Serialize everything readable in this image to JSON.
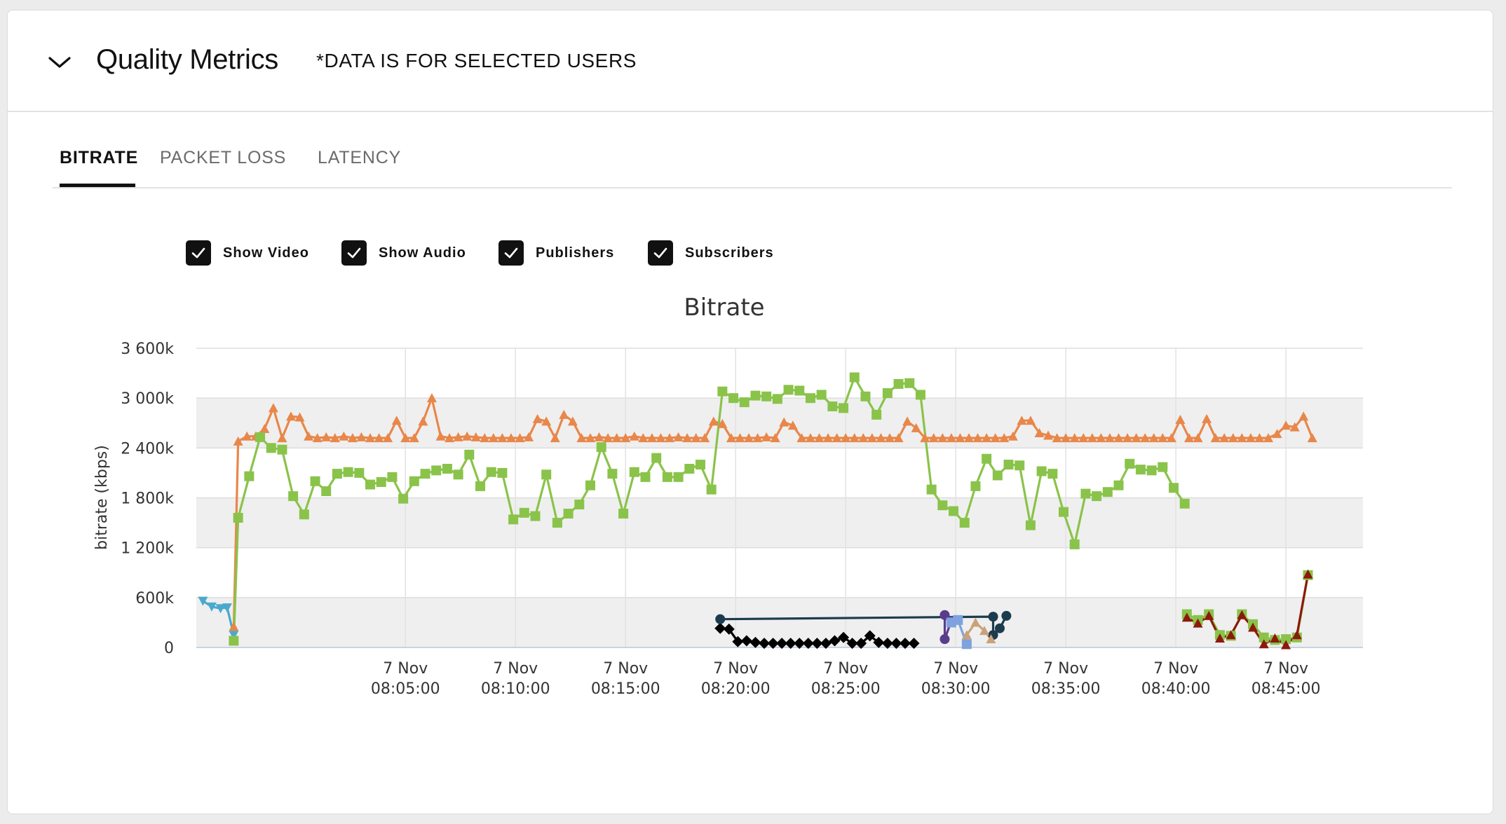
{
  "header": {
    "title": "Quality Metrics",
    "note": "*DATA IS FOR SELECTED USERS"
  },
  "tabs": [
    {
      "label": "BITRATE",
      "active": true
    },
    {
      "label": "PACKET LOSS",
      "active": false
    },
    {
      "label": "LATENCY",
      "active": false
    }
  ],
  "filters": [
    {
      "label": "Show Video",
      "checked": true
    },
    {
      "label": "Show Audio",
      "checked": true
    },
    {
      "label": "Publishers",
      "checked": true
    },
    {
      "label": "Subscribers",
      "checked": true
    }
  ],
  "chart_data": {
    "type": "line",
    "title": "Bitrate",
    "xlabel": "",
    "ylabel": "bitrate (kbps)",
    "ylim": [
      0,
      3600
    ],
    "xlim_minutes": [
      -4.5,
      48.5
    ],
    "x_unit": "minutes after 08:00:00",
    "y_ticks": [
      {
        "value": 0,
        "label": "0"
      },
      {
        "value": 600,
        "label": "600k"
      },
      {
        "value": 1200,
        "label": "1 200k"
      },
      {
        "value": 1800,
        "label": "1 800k"
      },
      {
        "value": 2400,
        "label": "2 400k"
      },
      {
        "value": 3000,
        "label": "3 000k"
      },
      {
        "value": 3600,
        "label": "3 600k"
      }
    ],
    "x_ticks": [
      {
        "value": 5,
        "label_top": "7 Nov",
        "label_bottom": "08:05:00"
      },
      {
        "value": 10,
        "label_top": "7 Nov",
        "label_bottom": "08:10:00"
      },
      {
        "value": 15,
        "label_top": "7 Nov",
        "label_bottom": "08:15:00"
      },
      {
        "value": 20,
        "label_top": "7 Nov",
        "label_bottom": "08:20:00"
      },
      {
        "value": 25,
        "label_top": "7 Nov",
        "label_bottom": "08:25:00"
      },
      {
        "value": 30,
        "label_top": "7 Nov",
        "label_bottom": "08:30:00"
      },
      {
        "value": 35,
        "label_top": "7 Nov",
        "label_bottom": "08:35:00"
      },
      {
        "value": 40,
        "label_top": "7 Nov",
        "label_bottom": "08:40:00"
      },
      {
        "value": 45,
        "label_top": "7 Nov",
        "label_bottom": "08:45:00"
      }
    ],
    "grid": true,
    "legend": "none",
    "series": [
      {
        "color": "#4aa9cc",
        "marker": "triangle-down",
        "points": [
          [
            -4.2,
            560
          ],
          [
            -3.8,
            490
          ],
          [
            -3.4,
            470
          ],
          [
            -3.1,
            480
          ],
          [
            -2.8,
            150
          ]
        ]
      },
      {
        "color": "#e8874a",
        "marker": "triangle-up",
        "points": [
          [
            -2.8,
            250
          ],
          [
            -2.6,
            2480
          ],
          [
            -2.2,
            2540
          ],
          [
            -1.8,
            2540
          ],
          [
            -1.4,
            2630
          ],
          [
            -1.0,
            2880
          ],
          [
            -0.6,
            2520
          ],
          [
            -0.2,
            2780
          ],
          [
            0.2,
            2770
          ],
          [
            0.6,
            2540
          ],
          [
            1.0,
            2520
          ],
          [
            1.4,
            2530
          ],
          [
            1.8,
            2520
          ],
          [
            2.2,
            2540
          ],
          [
            2.6,
            2520
          ],
          [
            3.0,
            2530
          ],
          [
            3.4,
            2520
          ],
          [
            3.8,
            2520
          ],
          [
            4.2,
            2520
          ],
          [
            4.6,
            2730
          ],
          [
            5.0,
            2520
          ],
          [
            5.4,
            2520
          ],
          [
            5.8,
            2720
          ],
          [
            6.2,
            3000
          ],
          [
            6.6,
            2540
          ],
          [
            7.0,
            2520
          ],
          [
            7.4,
            2530
          ],
          [
            7.8,
            2540
          ],
          [
            8.2,
            2530
          ],
          [
            8.6,
            2520
          ],
          [
            9.0,
            2520
          ],
          [
            9.4,
            2520
          ],
          [
            9.8,
            2520
          ],
          [
            10.2,
            2520
          ],
          [
            10.6,
            2530
          ],
          [
            11.0,
            2750
          ],
          [
            11.4,
            2720
          ],
          [
            11.8,
            2520
          ],
          [
            12.2,
            2800
          ],
          [
            12.6,
            2720
          ],
          [
            13.0,
            2520
          ],
          [
            13.4,
            2520
          ],
          [
            13.8,
            2530
          ],
          [
            14.2,
            2520
          ],
          [
            14.6,
            2520
          ],
          [
            15.0,
            2520
          ],
          [
            15.4,
            2540
          ],
          [
            15.8,
            2520
          ],
          [
            16.2,
            2520
          ],
          [
            16.6,
            2520
          ],
          [
            17.0,
            2520
          ],
          [
            17.4,
            2530
          ],
          [
            17.8,
            2520
          ],
          [
            18.2,
            2520
          ],
          [
            18.6,
            2520
          ],
          [
            19.0,
            2720
          ],
          [
            19.4,
            2690
          ],
          [
            19.8,
            2520
          ],
          [
            20.2,
            2520
          ],
          [
            20.6,
            2520
          ],
          [
            21.0,
            2520
          ],
          [
            21.4,
            2530
          ],
          [
            21.8,
            2520
          ],
          [
            22.2,
            2710
          ],
          [
            22.6,
            2670
          ],
          [
            23.0,
            2520
          ],
          [
            23.4,
            2520
          ],
          [
            23.8,
            2520
          ],
          [
            24.2,
            2520
          ],
          [
            24.6,
            2520
          ],
          [
            25.0,
            2520
          ],
          [
            25.4,
            2520
          ],
          [
            25.8,
            2520
          ],
          [
            26.2,
            2520
          ],
          [
            26.6,
            2520
          ],
          [
            27.0,
            2520
          ],
          [
            27.4,
            2520
          ],
          [
            27.8,
            2720
          ],
          [
            28.2,
            2640
          ],
          [
            28.6,
            2520
          ],
          [
            29.0,
            2520
          ],
          [
            29.4,
            2520
          ],
          [
            29.8,
            2520
          ],
          [
            30.2,
            2520
          ],
          [
            30.6,
            2520
          ],
          [
            31.0,
            2520
          ],
          [
            31.4,
            2520
          ],
          [
            31.8,
            2520
          ],
          [
            32.2,
            2520
          ],
          [
            32.6,
            2540
          ],
          [
            33.0,
            2730
          ],
          [
            33.4,
            2730
          ],
          [
            33.8,
            2580
          ],
          [
            34.2,
            2550
          ],
          [
            34.6,
            2520
          ],
          [
            35.0,
            2520
          ],
          [
            35.4,
            2520
          ],
          [
            35.8,
            2520
          ],
          [
            36.2,
            2520
          ],
          [
            36.6,
            2520
          ],
          [
            37.0,
            2520
          ],
          [
            37.4,
            2520
          ],
          [
            37.8,
            2520
          ],
          [
            38.2,
            2520
          ],
          [
            38.6,
            2520
          ],
          [
            39.0,
            2520
          ],
          [
            39.4,
            2520
          ],
          [
            39.8,
            2520
          ],
          [
            40.2,
            2740
          ],
          [
            40.6,
            2520
          ],
          [
            41.0,
            2520
          ],
          [
            41.4,
            2750
          ],
          [
            41.8,
            2520
          ],
          [
            42.2,
            2520
          ],
          [
            42.6,
            2520
          ],
          [
            43.0,
            2520
          ],
          [
            43.4,
            2520
          ],
          [
            43.8,
            2520
          ],
          [
            44.2,
            2520
          ],
          [
            44.6,
            2570
          ],
          [
            45.0,
            2670
          ],
          [
            45.4,
            2650
          ],
          [
            45.8,
            2780
          ],
          [
            46.2,
            2520
          ]
        ]
      },
      {
        "color": "#8ac34a",
        "marker": "square",
        "points": [
          [
            -2.8,
            80
          ],
          [
            -2.6,
            1560
          ],
          [
            -2.1,
            2060
          ],
          [
            -1.6,
            2530
          ],
          [
            -1.1,
            2400
          ],
          [
            -0.6,
            2380
          ],
          [
            -0.1,
            1820
          ],
          [
            0.4,
            1600
          ],
          [
            0.9,
            2000
          ],
          [
            1.4,
            1880
          ],
          [
            1.9,
            2090
          ],
          [
            2.4,
            2110
          ],
          [
            2.9,
            2100
          ],
          [
            3.4,
            1960
          ],
          [
            3.9,
            1990
          ],
          [
            4.4,
            2050
          ],
          [
            4.9,
            1790
          ],
          [
            5.4,
            2000
          ],
          [
            5.9,
            2090
          ],
          [
            6.4,
            2130
          ],
          [
            6.9,
            2150
          ],
          [
            7.4,
            2080
          ],
          [
            7.9,
            2320
          ],
          [
            8.4,
            1940
          ],
          [
            8.9,
            2110
          ],
          [
            9.4,
            2100
          ],
          [
            9.9,
            1540
          ],
          [
            10.4,
            1620
          ],
          [
            10.9,
            1580
          ],
          [
            11.4,
            2080
          ],
          [
            11.9,
            1500
          ],
          [
            12.4,
            1610
          ],
          [
            12.9,
            1720
          ],
          [
            13.4,
            1950
          ],
          [
            13.9,
            2410
          ],
          [
            14.4,
            2090
          ],
          [
            14.9,
            1610
          ],
          [
            15.4,
            2110
          ],
          [
            15.9,
            2050
          ],
          [
            16.4,
            2280
          ],
          [
            16.9,
            2050
          ],
          [
            17.4,
            2050
          ],
          [
            17.9,
            2150
          ],
          [
            18.4,
            2200
          ],
          [
            18.9,
            1900
          ],
          [
            19.4,
            3080
          ],
          [
            19.9,
            3000
          ],
          [
            20.4,
            2950
          ],
          [
            20.9,
            3030
          ],
          [
            21.4,
            3020
          ],
          [
            21.9,
            2990
          ],
          [
            22.4,
            3100
          ],
          [
            22.9,
            3090
          ],
          [
            23.4,
            3000
          ],
          [
            23.9,
            3040
          ],
          [
            24.4,
            2900
          ],
          [
            24.9,
            2880
          ],
          [
            25.4,
            3250
          ],
          [
            25.9,
            3020
          ],
          [
            26.4,
            2800
          ],
          [
            26.9,
            3060
          ],
          [
            27.4,
            3170
          ],
          [
            27.9,
            3180
          ],
          [
            28.4,
            3040
          ],
          [
            28.9,
            1900
          ],
          [
            29.4,
            1710
          ],
          [
            29.9,
            1640
          ],
          [
            30.4,
            1500
          ],
          [
            30.9,
            1940
          ],
          [
            31.4,
            2270
          ],
          [
            31.9,
            2070
          ],
          [
            32.4,
            2200
          ],
          [
            32.9,
            2190
          ],
          [
            33.4,
            1470
          ],
          [
            33.9,
            2120
          ],
          [
            34.4,
            2090
          ],
          [
            34.9,
            1630
          ],
          [
            35.4,
            1240
          ],
          [
            35.9,
            1850
          ],
          [
            36.4,
            1820
          ],
          [
            36.9,
            1870
          ],
          [
            37.4,
            1950
          ],
          [
            37.9,
            2210
          ],
          [
            38.4,
            2140
          ],
          [
            38.9,
            2130
          ],
          [
            39.4,
            2170
          ],
          [
            39.9,
            1920
          ],
          [
            40.4,
            1730
          ]
        ]
      },
      {
        "color": "#000000",
        "marker": "diamond",
        "points": [
          [
            19.3,
            230
          ],
          [
            19.7,
            220
          ],
          [
            20.1,
            70
          ],
          [
            20.5,
            80
          ],
          [
            20.9,
            60
          ],
          [
            21.3,
            50
          ],
          [
            21.7,
            50
          ],
          [
            22.1,
            50
          ],
          [
            22.5,
            50
          ],
          [
            22.9,
            50
          ],
          [
            23.3,
            50
          ],
          [
            23.7,
            50
          ],
          [
            24.1,
            50
          ],
          [
            24.5,
            80
          ],
          [
            24.9,
            120
          ],
          [
            25.3,
            50
          ],
          [
            25.7,
            50
          ],
          [
            26.1,
            140
          ],
          [
            26.5,
            60
          ],
          [
            26.9,
            50
          ],
          [
            27.3,
            50
          ],
          [
            27.7,
            50
          ],
          [
            28.1,
            50
          ]
        ]
      },
      {
        "color": "#1c3c4e",
        "marker": "circle",
        "points": [
          [
            19.3,
            340
          ],
          [
            31.7,
            370
          ],
          [
            31.7,
            150
          ],
          [
            32.0,
            230
          ],
          [
            32.3,
            380
          ]
        ]
      },
      {
        "color": "#5a3d8a",
        "marker": "circle",
        "points": [
          [
            29.5,
            390
          ],
          [
            29.5,
            100
          ],
          [
            29.8,
            320
          ]
        ]
      },
      {
        "color": "#7ea2df",
        "marker": "square",
        "points": [
          [
            29.8,
            300
          ],
          [
            30.1,
            330
          ],
          [
            30.5,
            40
          ]
        ]
      },
      {
        "color": "#c9a27a",
        "marker": "triangle-up",
        "points": [
          [
            30.5,
            150
          ],
          [
            30.9,
            300
          ],
          [
            31.3,
            200
          ],
          [
            31.6,
            100
          ]
        ]
      },
      {
        "color": "#8ac34a",
        "marker": "square",
        "points": [
          [
            40.5,
            400
          ],
          [
            41.0,
            330
          ],
          [
            41.5,
            400
          ],
          [
            42.0,
            150
          ],
          [
            42.5,
            140
          ],
          [
            43.0,
            400
          ],
          [
            43.5,
            280
          ],
          [
            44.0,
            120
          ],
          [
            44.5,
            90
          ],
          [
            45.0,
            100
          ],
          [
            45.5,
            120
          ],
          [
            46.0,
            870
          ]
        ]
      },
      {
        "color": "#8b1a0a",
        "marker": "triangle-up",
        "points": [
          [
            40.5,
            360
          ],
          [
            41.0,
            290
          ],
          [
            41.5,
            380
          ],
          [
            42.0,
            110
          ],
          [
            42.5,
            150
          ],
          [
            43.0,
            390
          ],
          [
            43.5,
            240
          ],
          [
            44.0,
            40
          ],
          [
            44.5,
            110
          ],
          [
            45.0,
            30
          ],
          [
            45.5,
            150
          ],
          [
            46.0,
            880
          ]
        ]
      }
    ]
  }
}
